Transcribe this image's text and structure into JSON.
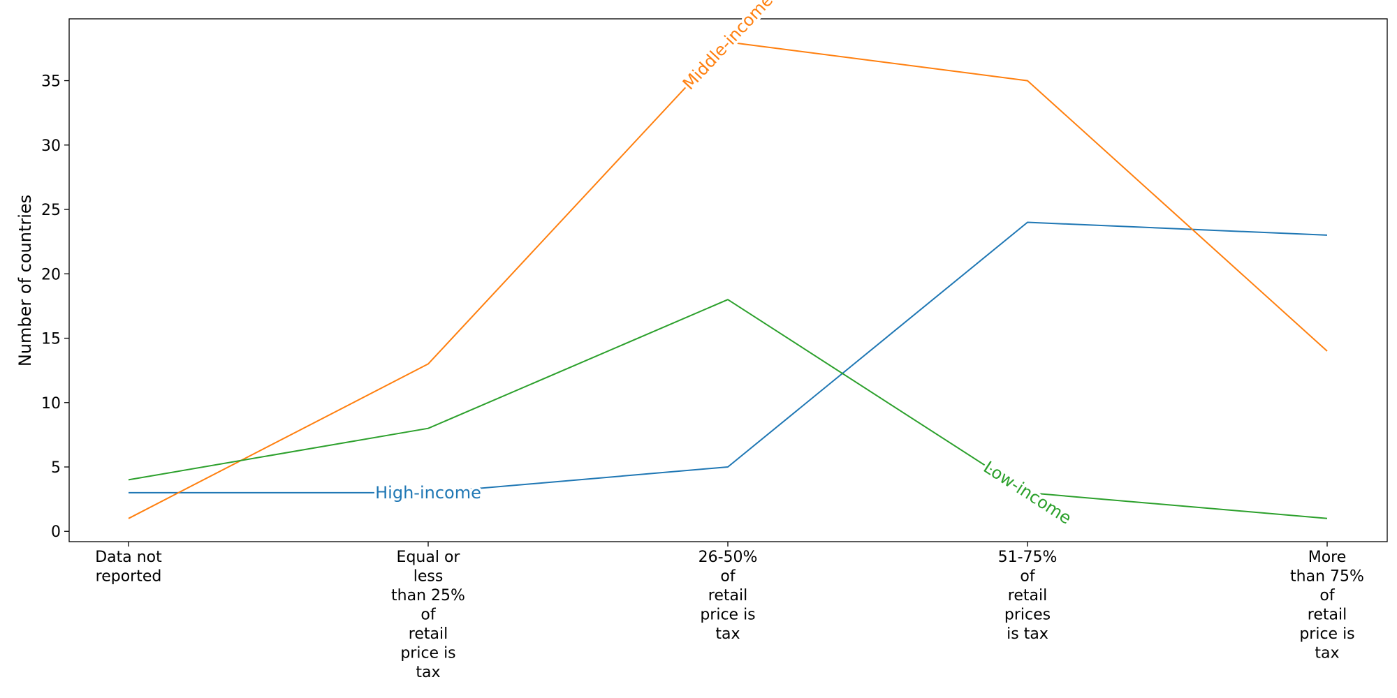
{
  "chart_data": {
    "type": "line",
    "ylabel": "Number of countries",
    "xlabel": "",
    "categories": [
      [
        "Data not",
        "reported"
      ],
      [
        "Equal or",
        "less",
        "than 25%",
        "of",
        "retail",
        "price is",
        "tax"
      ],
      [
        "26-50%",
        "of",
        "retail",
        "price is",
        "tax"
      ],
      [
        "51-75%",
        "of",
        "retail",
        "prices",
        "is tax"
      ],
      [
        "More",
        "than 75%",
        "of",
        "retail",
        "price is",
        "tax"
      ]
    ],
    "ylim": [
      -0.8,
      39.8
    ],
    "yticks": [
      0,
      5,
      10,
      15,
      20,
      25,
      30,
      35
    ],
    "grid": false,
    "legend": "none (inline line labels)",
    "series": [
      {
        "name": "High-income",
        "color": "#1f77b4",
        "values": [
          3,
          3,
          5,
          24,
          23
        ]
      },
      {
        "name": "Middle-income",
        "color": "#ff7f0e",
        "values": [
          1,
          13,
          38,
          35,
          14
        ]
      },
      {
        "name": "Low-income",
        "color": "#2ca02c",
        "values": [
          4,
          8,
          18,
          3,
          1
        ]
      }
    ],
    "inline_labels": [
      {
        "series": 0,
        "text": "High-income",
        "at_x": 1.0
      },
      {
        "series": 1,
        "text": "Middle-income",
        "at_x": 2.0
      },
      {
        "series": 2,
        "text": "Low-income",
        "at_x": 3.0
      }
    ]
  }
}
